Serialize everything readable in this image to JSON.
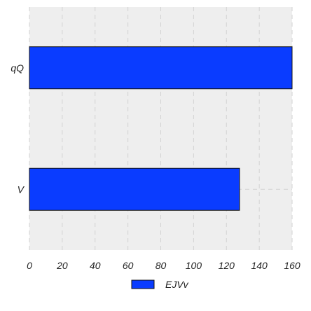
{
  "chart_data": {
    "type": "bar",
    "orientation": "horizontal",
    "categories": [
      "V",
      "qQ"
    ],
    "series": [
      {
        "name": "EJVv",
        "values": [
          128,
          160
        ],
        "color": "#0a3cff"
      }
    ],
    "xlim": [
      0,
      160
    ],
    "x_ticks": [
      0,
      20,
      40,
      60,
      80,
      100,
      120,
      140,
      160
    ],
    "title": "",
    "xlabel": "",
    "ylabel": "",
    "grid": true,
    "legend_position": "bottom-center",
    "background_color": "#eeeeee",
    "grid_color": "#d2d2d2",
    "bar_edge_color": "#111111"
  }
}
